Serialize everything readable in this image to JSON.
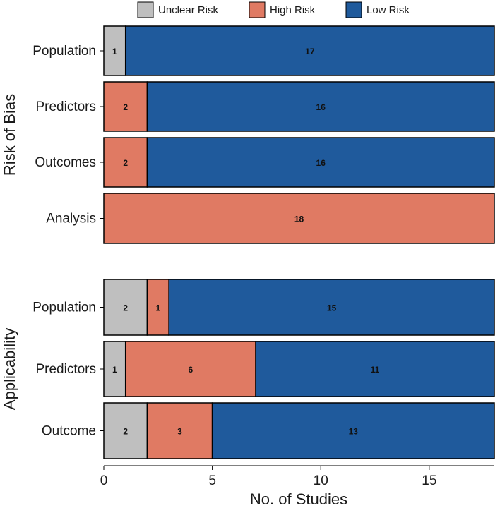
{
  "chart_data": {
    "type": "bar",
    "orientation": "horizontal",
    "stacked": true,
    "xlabel": "No. of Studies",
    "xlim": [
      0,
      18
    ],
    "xticks": [
      0,
      5,
      10,
      15
    ],
    "legend": {
      "position": "top",
      "entries": [
        {
          "name": "Unclear Risk",
          "color": "#bfbfbf"
        },
        {
          "name": "High Risk",
          "color": "#e07a63"
        },
        {
          "name": "Low Risk",
          "color": "#1f5a9c"
        }
      ]
    },
    "panels": [
      {
        "name": "Risk of Bias",
        "categories": [
          "Population",
          "Predictors",
          "Outcomes",
          "Analysis"
        ],
        "series": [
          {
            "name": "Unclear Risk",
            "values": [
              1,
              0,
              0,
              0
            ]
          },
          {
            "name": "High Risk",
            "values": [
              0,
              2,
              2,
              18
            ]
          },
          {
            "name": "Low Risk",
            "values": [
              17,
              16,
              16,
              0
            ]
          }
        ]
      },
      {
        "name": "Applicability",
        "categories": [
          "Population",
          "Predictors",
          "Outcome"
        ],
        "series": [
          {
            "name": "Unclear Risk",
            "values": [
              2,
              1,
              2
            ]
          },
          {
            "name": "High Risk",
            "values": [
              1,
              6,
              3
            ]
          },
          {
            "name": "Low Risk",
            "values": [
              15,
              11,
              13
            ]
          }
        ]
      }
    ]
  }
}
